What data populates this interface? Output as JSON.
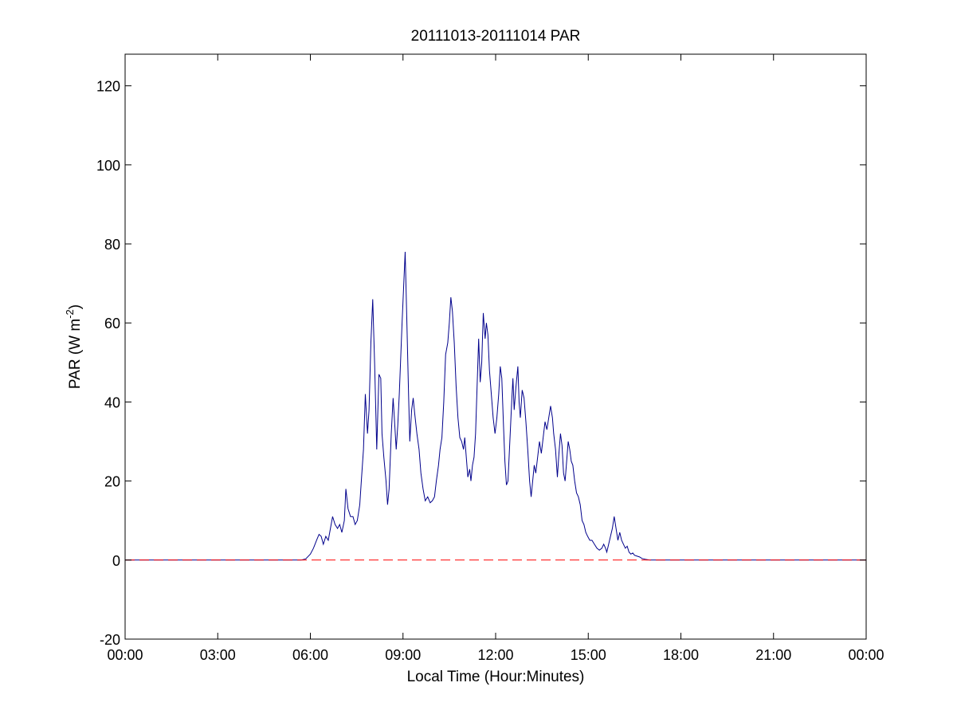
{
  "chart_data": {
    "type": "line",
    "title": "20111013-20111014 PAR",
    "xlabel": "Local Time (Hour:Minutes)",
    "ylabel": {
      "main": "PAR (W m",
      "superscript": "-2",
      "close": ")"
    },
    "x_unit": "hours (local time)",
    "xlim": [
      0,
      24
    ],
    "ylim": [
      -20,
      128
    ],
    "x_ticks": [
      {
        "value": 0,
        "label": "00:00"
      },
      {
        "value": 3,
        "label": "03:00"
      },
      {
        "value": 6,
        "label": "06:00"
      },
      {
        "value": 9,
        "label": "09:00"
      },
      {
        "value": 12,
        "label": "12:00"
      },
      {
        "value": 15,
        "label": "15:00"
      },
      {
        "value": 18,
        "label": "18:00"
      },
      {
        "value": 21,
        "label": "21:00"
      },
      {
        "value": 24,
        "label": "00:00"
      }
    ],
    "y_ticks": [
      {
        "value": -20,
        "label": "-20"
      },
      {
        "value": 0,
        "label": "0"
      },
      {
        "value": 20,
        "label": "20"
      },
      {
        "value": 40,
        "label": "40"
      },
      {
        "value": 60,
        "label": "60"
      },
      {
        "value": 80,
        "label": "80"
      },
      {
        "value": 100,
        "label": "100"
      },
      {
        "value": 120,
        "label": "120"
      }
    ],
    "grid": false,
    "legend": "none",
    "series": [
      {
        "color": "#00008b",
        "style": "solid",
        "points": [
          [
            0,
            0
          ],
          [
            5.7,
            0
          ],
          [
            5.85,
            0.3
          ],
          [
            6.0,
            1.5
          ],
          [
            6.1,
            3
          ],
          [
            6.2,
            5
          ],
          [
            6.28,
            6.5
          ],
          [
            6.35,
            6
          ],
          [
            6.42,
            4
          ],
          [
            6.5,
            6
          ],
          [
            6.58,
            5
          ],
          [
            6.65,
            8
          ],
          [
            6.72,
            11
          ],
          [
            6.8,
            9
          ],
          [
            6.88,
            8
          ],
          [
            6.95,
            9
          ],
          [
            7.02,
            7
          ],
          [
            7.1,
            10
          ],
          [
            7.15,
            18
          ],
          [
            7.22,
            13
          ],
          [
            7.3,
            11
          ],
          [
            7.38,
            11
          ],
          [
            7.45,
            9
          ],
          [
            7.52,
            10
          ],
          [
            7.6,
            14
          ],
          [
            7.65,
            20
          ],
          [
            7.72,
            28
          ],
          [
            7.78,
            42
          ],
          [
            7.85,
            32
          ],
          [
            7.9,
            38
          ],
          [
            7.96,
            55
          ],
          [
            8.02,
            66
          ],
          [
            8.08,
            50
          ],
          [
            8.15,
            28
          ],
          [
            8.22,
            47
          ],
          [
            8.28,
            46
          ],
          [
            8.32,
            32
          ],
          [
            8.38,
            26
          ],
          [
            8.45,
            20
          ],
          [
            8.5,
            14
          ],
          [
            8.55,
            18
          ],
          [
            8.62,
            32
          ],
          [
            8.68,
            41
          ],
          [
            8.72,
            36
          ],
          [
            8.78,
            28
          ],
          [
            8.83,
            34
          ],
          [
            8.88,
            42
          ],
          [
            8.92,
            50
          ],
          [
            8.97,
            60
          ],
          [
            9.02,
            69
          ],
          [
            9.07,
            78
          ],
          [
            9.12,
            62
          ],
          [
            9.18,
            42
          ],
          [
            9.22,
            30
          ],
          [
            9.28,
            38
          ],
          [
            9.33,
            41
          ],
          [
            9.38,
            37
          ],
          [
            9.45,
            32
          ],
          [
            9.52,
            28
          ],
          [
            9.58,
            22
          ],
          [
            9.65,
            18
          ],
          [
            9.72,
            15
          ],
          [
            9.8,
            16
          ],
          [
            9.88,
            14.5
          ],
          [
            9.95,
            15
          ],
          [
            10.02,
            16
          ],
          [
            10.08,
            20
          ],
          [
            10.15,
            24
          ],
          [
            10.2,
            28
          ],
          [
            10.26,
            31
          ],
          [
            10.32,
            40
          ],
          [
            10.38,
            52
          ],
          [
            10.45,
            55
          ],
          [
            10.5,
            60
          ],
          [
            10.55,
            66.5
          ],
          [
            10.6,
            63
          ],
          [
            10.66,
            55
          ],
          [
            10.72,
            44
          ],
          [
            10.78,
            36
          ],
          [
            10.84,
            31
          ],
          [
            10.9,
            30
          ],
          [
            10.96,
            28
          ],
          [
            11.0,
            31
          ],
          [
            11.05,
            26
          ],
          [
            11.1,
            21
          ],
          [
            11.16,
            23
          ],
          [
            11.2,
            20
          ],
          [
            11.25,
            24
          ],
          [
            11.3,
            26
          ],
          [
            11.35,
            32
          ],
          [
            11.4,
            44
          ],
          [
            11.45,
            56
          ],
          [
            11.5,
            45
          ],
          [
            11.55,
            50
          ],
          [
            11.6,
            62.5
          ],
          [
            11.66,
            56
          ],
          [
            11.7,
            60
          ],
          [
            11.75,
            57
          ],
          [
            11.8,
            48
          ],
          [
            11.86,
            42
          ],
          [
            11.92,
            36
          ],
          [
            11.98,
            32
          ],
          [
            12.04,
            36
          ],
          [
            12.1,
            42
          ],
          [
            12.15,
            49
          ],
          [
            12.2,
            46
          ],
          [
            12.25,
            35
          ],
          [
            12.3,
            25
          ],
          [
            12.35,
            19
          ],
          [
            12.4,
            20
          ],
          [
            12.46,
            30
          ],
          [
            12.52,
            40
          ],
          [
            12.56,
            46
          ],
          [
            12.6,
            38
          ],
          [
            12.66,
            44
          ],
          [
            12.72,
            49
          ],
          [
            12.76,
            40
          ],
          [
            12.8,
            36
          ],
          [
            12.86,
            43
          ],
          [
            12.92,
            41
          ],
          [
            12.98,
            35
          ],
          [
            13.04,
            28
          ],
          [
            13.1,
            20
          ],
          [
            13.15,
            16
          ],
          [
            13.2,
            20
          ],
          [
            13.25,
            24
          ],
          [
            13.3,
            22
          ],
          [
            13.36,
            26
          ],
          [
            13.42,
            30
          ],
          [
            13.48,
            27
          ],
          [
            13.54,
            31
          ],
          [
            13.6,
            35
          ],
          [
            13.66,
            33
          ],
          [
            13.72,
            36
          ],
          [
            13.78,
            39
          ],
          [
            13.84,
            36
          ],
          [
            13.88,
            32
          ],
          [
            13.94,
            28
          ],
          [
            14.0,
            21
          ],
          [
            14.05,
            27
          ],
          [
            14.1,
            32
          ],
          [
            14.15,
            29
          ],
          [
            14.2,
            22
          ],
          [
            14.25,
            20
          ],
          [
            14.3,
            25
          ],
          [
            14.35,
            30
          ],
          [
            14.4,
            28
          ],
          [
            14.45,
            25
          ],
          [
            14.5,
            24
          ],
          [
            14.56,
            20
          ],
          [
            14.62,
            17
          ],
          [
            14.68,
            16
          ],
          [
            14.74,
            14
          ],
          [
            14.8,
            10
          ],
          [
            14.86,
            9
          ],
          [
            14.92,
            7
          ],
          [
            14.98,
            6
          ],
          [
            15.05,
            5
          ],
          [
            15.12,
            5
          ],
          [
            15.2,
            4
          ],
          [
            15.28,
            3
          ],
          [
            15.36,
            2.5
          ],
          [
            15.44,
            3
          ],
          [
            15.5,
            4
          ],
          [
            15.56,
            3
          ],
          [
            15.6,
            2
          ],
          [
            15.66,
            4
          ],
          [
            15.72,
            6
          ],
          [
            15.78,
            8
          ],
          [
            15.84,
            11
          ],
          [
            15.9,
            8
          ],
          [
            15.96,
            5
          ],
          [
            16.02,
            7
          ],
          [
            16.08,
            5
          ],
          [
            16.14,
            4
          ],
          [
            16.2,
            3
          ],
          [
            16.26,
            3.5
          ],
          [
            16.32,
            2
          ],
          [
            16.38,
            1.5
          ],
          [
            16.44,
            1.8
          ],
          [
            16.5,
            1.2
          ],
          [
            16.58,
            1.0
          ],
          [
            16.66,
            0.8
          ],
          [
            16.74,
            0.4
          ],
          [
            16.85,
            0.2
          ],
          [
            17.0,
            0
          ],
          [
            24,
            0
          ]
        ]
      },
      {
        "color": "#ff0000",
        "style": "dashed",
        "points": [
          [
            0,
            0
          ],
          [
            24,
            0
          ]
        ]
      }
    ]
  }
}
